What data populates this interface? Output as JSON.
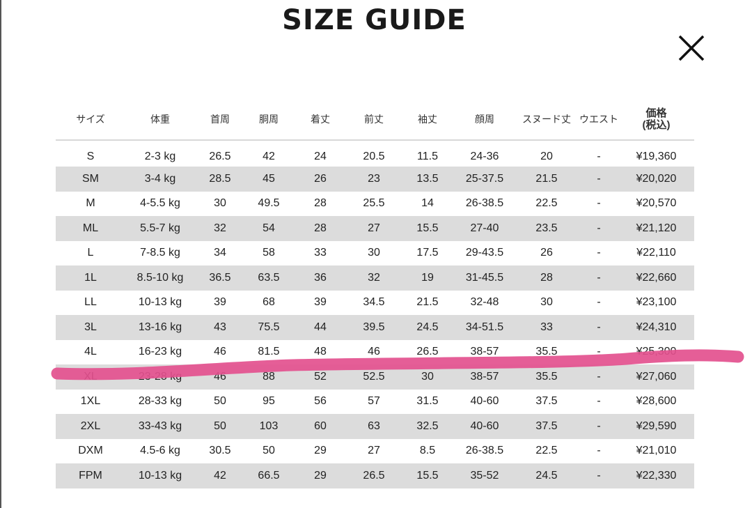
{
  "title": "SIZE GUIDE",
  "close_icon": "close-x-icon",
  "highlight_color": "#e3508e",
  "row_alt_color": "#dcdcdc",
  "headers": [
    "サイズ",
    "体重",
    "首周",
    "胴周",
    "着丈",
    "前丈",
    "袖丈",
    "顔周",
    "スヌード丈",
    "ウエスト",
    "価格\n(税込)"
  ],
  "header_price_line1": "価格",
  "header_price_line2": "(税込)",
  "rows": [
    [
      "S",
      "2-3 kg",
      "26.5",
      "42",
      "24",
      "20.5",
      "11.5",
      "24-36",
      "20",
      "-",
      "¥19,360"
    ],
    [
      "SM",
      "3-4 kg",
      "28.5",
      "45",
      "26",
      "23",
      "13.5",
      "25-37.5",
      "21.5",
      "-",
      "¥20,020"
    ],
    [
      "M",
      "4-5.5 kg",
      "30",
      "49.5",
      "28",
      "25.5",
      "14",
      "26-38.5",
      "22.5",
      "-",
      "¥20,570"
    ],
    [
      "ML",
      "5.5-7 kg",
      "32",
      "54",
      "28",
      "27",
      "15.5",
      "27-40",
      "23.5",
      "-",
      "¥21,120"
    ],
    [
      "L",
      "7-8.5 kg",
      "34",
      "58",
      "33",
      "30",
      "17.5",
      "29-43.5",
      "26",
      "-",
      "¥22,110"
    ],
    [
      "1L",
      "8.5-10 kg",
      "36.5",
      "63.5",
      "36",
      "32",
      "19",
      "31-45.5",
      "28",
      "-",
      "¥22,660"
    ],
    [
      "LL",
      "10-13 kg",
      "39",
      "68",
      "39",
      "34.5",
      "21.5",
      "32-48",
      "30",
      "-",
      "¥23,100"
    ],
    [
      "3L",
      "13-16 kg",
      "43",
      "75.5",
      "44",
      "39.5",
      "24.5",
      "34-51.5",
      "33",
      "-",
      "¥24,310"
    ],
    [
      "4L",
      "16-23 kg",
      "46",
      "81.5",
      "48",
      "46",
      "26.5",
      "38-57",
      "35.5",
      "-",
      "¥25,300"
    ],
    [
      "XL",
      "23-28 kg",
      "46",
      "88",
      "52",
      "52.5",
      "30",
      "38-57",
      "35.5",
      "-",
      "¥27,060"
    ],
    [
      "1XL",
      "28-33 kg",
      "50",
      "95",
      "56",
      "57",
      "31.5",
      "40-60",
      "37.5",
      "-",
      "¥28,600"
    ],
    [
      "2XL",
      "33-43 kg",
      "50",
      "103",
      "60",
      "63",
      "32.5",
      "40-60",
      "37.5",
      "-",
      "¥29,590"
    ],
    [
      "DXM",
      "4.5-6 kg",
      "30.5",
      "50",
      "29",
      "27",
      "8.5",
      "26-38.5",
      "22.5",
      "-",
      "¥21,010"
    ],
    [
      "FPM",
      "10-13 kg",
      "42",
      "66.5",
      "29",
      "26.5",
      "15.5",
      "35-52",
      "24.5",
      "-",
      "¥22,330"
    ]
  ]
}
